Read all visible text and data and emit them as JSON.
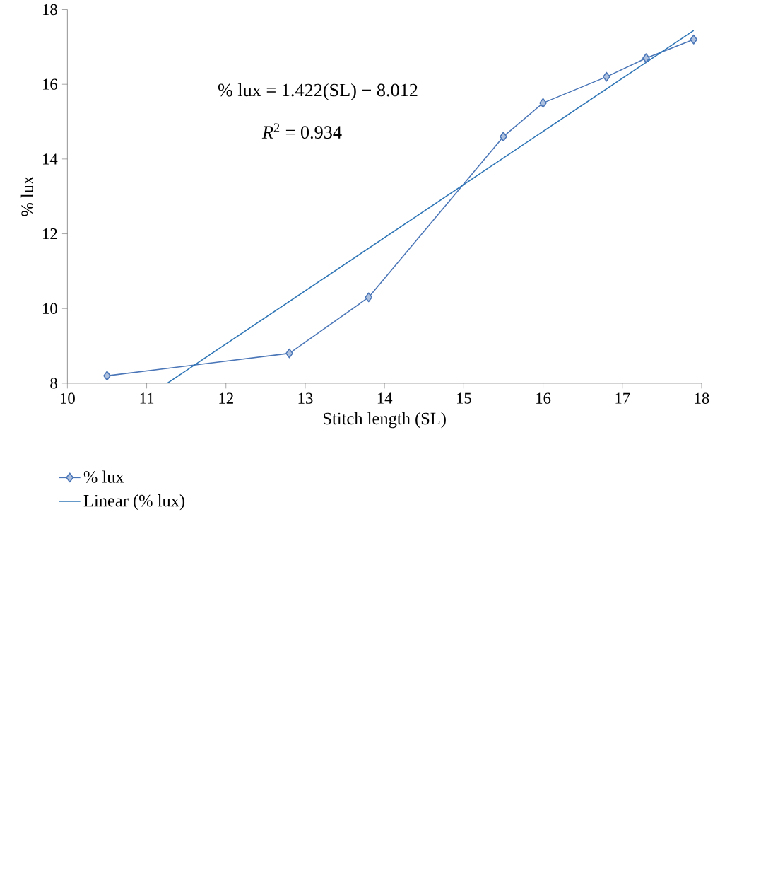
{
  "chart_data": {
    "type": "line",
    "xlabel": "Stitch length (SL)",
    "ylabel": "% lux",
    "xlim": [
      10,
      18
    ],
    "ylim": [
      8,
      18
    ],
    "xticks": [
      10,
      11,
      12,
      13,
      14,
      15,
      16,
      17,
      18
    ],
    "yticks": [
      8,
      10,
      12,
      14,
      16,
      18
    ],
    "legend": "bottom left",
    "line_style": "solid",
    "series": [
      {
        "name": "% lux",
        "color": "#4a76b8",
        "marker": "diamond",
        "x": [
          10.5,
          12.8,
          13.8,
          15.5,
          16.0,
          16.8,
          17.3,
          17.9
        ],
        "values": [
          8.2,
          8.8,
          10.3,
          14.6,
          15.5,
          16.2,
          16.7,
          17.2
        ]
      },
      {
        "name": "Linear (% lux)",
        "color": "#2e75b6",
        "marker": "none",
        "x": [
          11.26,
          17.9
        ],
        "values": [
          8.0,
          17.44
        ]
      }
    ],
    "annotations": [
      "% lux = 1.422(SL) − 8.012",
      "*R*$^{2}$ = 0.934"
    ]
  }
}
